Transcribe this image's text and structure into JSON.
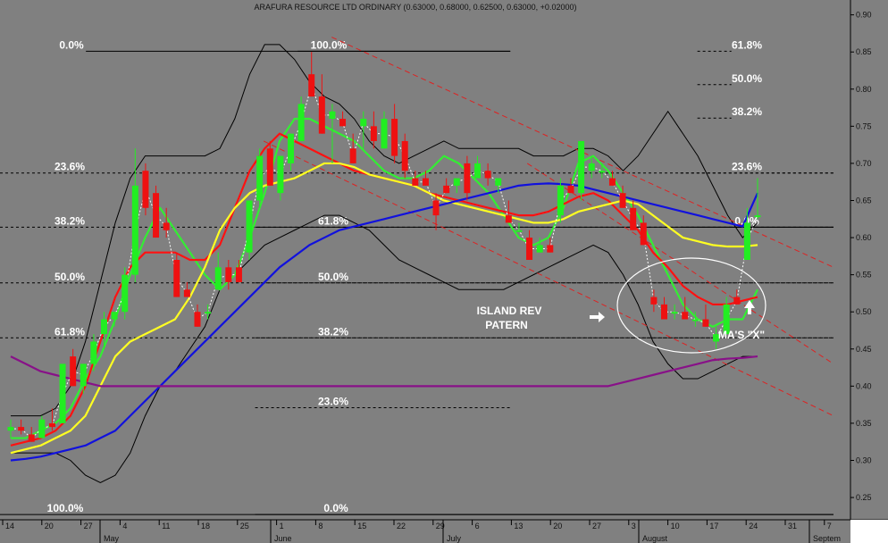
{
  "colors": {
    "background": "#808080",
    "candle_up": "#22ee22",
    "candle_down": "#ee1111",
    "ma_fast": "#33ee33",
    "ma_mid": "#ff1111",
    "ma_slow": "#ffff22",
    "ma_long": "#1111dd",
    "ma_very_long": "#881188",
    "bollinger": "#000000",
    "channel": "#dd2222",
    "annotation": "#ffffff"
  },
  "chart_data": {
    "type": "candlestick",
    "title": "ARAFURA RESOURCE LTD ORDINARY (0.63000, 0.68000, 0.62500, 0.63000, +0.02000)",
    "yaxis": {
      "ticks": [
        "0.90",
        "0.85",
        "0.80",
        "0.75",
        "0.70",
        "0.65",
        "0.60",
        "0.55",
        "0.50",
        "0.45",
        "0.40",
        "0.35",
        "0.30",
        "0.25"
      ],
      "range": [
        0.22,
        0.92
      ],
      "position": "right"
    },
    "xaxis": {
      "day_ticks": [
        "14",
        "20",
        "27",
        "4",
        "11",
        "18",
        "25",
        "1",
        "8",
        "15",
        "22",
        "29",
        "6",
        "13",
        "20",
        "27",
        "3",
        "10",
        "17",
        "24",
        "31",
        "7"
      ],
      "month_labels": [
        "May",
        "June",
        "July",
        "August",
        "Septem"
      ]
    },
    "fib_levels": [
      {
        "label": "0.0%",
        "price": 0.851
      },
      {
        "label": "100.0%",
        "price": 0.851
      },
      {
        "label": "61.8%",
        "price": 0.851
      },
      {
        "label": "50.0%",
        "price": 0.806
      },
      {
        "label": "38.2%",
        "price": 0.761
      },
      {
        "label": "23.6%",
        "price": 0.687
      },
      {
        "label": "23.6%",
        "price": 0.687
      },
      {
        "label": "38.2%",
        "price": 0.614
      },
      {
        "label": "61.8%",
        "price": 0.614
      },
      {
        "label": "0.0%",
        "price": 0.614
      },
      {
        "label": "50.0%",
        "price": 0.539
      },
      {
        "label": "50.0%",
        "price": 0.539
      },
      {
        "label": "61.8%",
        "price": 0.465
      },
      {
        "label": "38.2%",
        "price": 0.465
      },
      {
        "label": "23.6%",
        "price": 0.371
      },
      {
        "label": "100.0%",
        "price": 0.227
      },
      {
        "label": "0.0%",
        "price": 0.227
      }
    ],
    "candles": [
      {
        "o": 0.34,
        "h": 0.355,
        "l": 0.33,
        "c": 0.345
      },
      {
        "o": 0.345,
        "h": 0.355,
        "l": 0.335,
        "c": 0.34
      },
      {
        "o": 0.335,
        "h": 0.345,
        "l": 0.325,
        "c": 0.325
      },
      {
        "o": 0.33,
        "h": 0.36,
        "l": 0.33,
        "c": 0.355
      },
      {
        "o": 0.35,
        "h": 0.37,
        "l": 0.34,
        "c": 0.345
      },
      {
        "o": 0.35,
        "h": 0.43,
        "l": 0.35,
        "c": 0.43
      },
      {
        "o": 0.44,
        "h": 0.45,
        "l": 0.4,
        "c": 0.4
      },
      {
        "o": 0.4,
        "h": 0.43,
        "l": 0.39,
        "c": 0.43
      },
      {
        "o": 0.43,
        "h": 0.47,
        "l": 0.42,
        "c": 0.46
      },
      {
        "o": 0.47,
        "h": 0.5,
        "l": 0.45,
        "c": 0.49
      },
      {
        "o": 0.49,
        "h": 0.5,
        "l": 0.48,
        "c": 0.5
      },
      {
        "o": 0.5,
        "h": 0.56,
        "l": 0.49,
        "c": 0.55
      },
      {
        "o": 0.55,
        "h": 0.72,
        "l": 0.54,
        "c": 0.67
      },
      {
        "o": 0.69,
        "h": 0.7,
        "l": 0.63,
        "c": 0.64
      },
      {
        "o": 0.66,
        "h": 0.67,
        "l": 0.6,
        "c": 0.6
      },
      {
        "o": 0.62,
        "h": 0.64,
        "l": 0.6,
        "c": 0.61
      },
      {
        "o": 0.57,
        "h": 0.58,
        "l": 0.52,
        "c": 0.52
      },
      {
        "o": 0.53,
        "h": 0.54,
        "l": 0.52,
        "c": 0.52
      },
      {
        "o": 0.5,
        "h": 0.51,
        "l": 0.48,
        "c": 0.48
      },
      {
        "o": 0.5,
        "h": 0.51,
        "l": 0.49,
        "c": 0.5
      },
      {
        "o": 0.53,
        "h": 0.58,
        "l": 0.53,
        "c": 0.56
      },
      {
        "o": 0.56,
        "h": 0.57,
        "l": 0.53,
        "c": 0.54
      },
      {
        "o": 0.56,
        "h": 0.57,
        "l": 0.54,
        "c": 0.54
      },
      {
        "o": 0.58,
        "h": 0.65,
        "l": 0.57,
        "c": 0.65
      },
      {
        "o": 0.65,
        "h": 0.72,
        "l": 0.64,
        "c": 0.71
      },
      {
        "o": 0.72,
        "h": 0.73,
        "l": 0.67,
        "c": 0.67
      },
      {
        "o": 0.66,
        "h": 0.71,
        "l": 0.65,
        "c": 0.71
      },
      {
        "o": 0.7,
        "h": 0.74,
        "l": 0.69,
        "c": 0.74
      },
      {
        "o": 0.73,
        "h": 0.79,
        "l": 0.73,
        "c": 0.78
      },
      {
        "o": 0.82,
        "h": 0.85,
        "l": 0.79,
        "c": 0.79
      },
      {
        "o": 0.79,
        "h": 0.82,
        "l": 0.74,
        "c": 0.74
      },
      {
        "o": 0.76,
        "h": 0.78,
        "l": 0.7,
        "c": 0.77
      },
      {
        "o": 0.76,
        "h": 0.77,
        "l": 0.75,
        "c": 0.75
      },
      {
        "o": 0.72,
        "h": 0.74,
        "l": 0.7,
        "c": 0.7
      },
      {
        "o": 0.75,
        "h": 0.77,
        "l": 0.72,
        "c": 0.76
      },
      {
        "o": 0.75,
        "h": 0.77,
        "l": 0.72,
        "c": 0.73
      },
      {
        "o": 0.72,
        "h": 0.77,
        "l": 0.72,
        "c": 0.76
      },
      {
        "o": 0.76,
        "h": 0.78,
        "l": 0.7,
        "c": 0.71
      },
      {
        "o": 0.73,
        "h": 0.74,
        "l": 0.68,
        "c": 0.69
      },
      {
        "o": 0.68,
        "h": 0.69,
        "l": 0.67,
        "c": 0.67
      },
      {
        "o": 0.68,
        "h": 0.69,
        "l": 0.67,
        "c": 0.67
      },
      {
        "o": 0.65,
        "h": 0.66,
        "l": 0.61,
        "c": 0.63
      },
      {
        "o": 0.67,
        "h": 0.68,
        "l": 0.66,
        "c": 0.66
      },
      {
        "o": 0.67,
        "h": 0.68,
        "l": 0.66,
        "c": 0.68
      },
      {
        "o": 0.7,
        "h": 0.71,
        "l": 0.65,
        "c": 0.66
      },
      {
        "o": 0.68,
        "h": 0.71,
        "l": 0.68,
        "c": 0.7
      },
      {
        "o": 0.69,
        "h": 0.7,
        "l": 0.67,
        "c": 0.68
      },
      {
        "o": 0.67,
        "h": 0.68,
        "l": 0.66,
        "c": 0.68
      },
      {
        "o": 0.63,
        "h": 0.65,
        "l": 0.62,
        "c": 0.62
      },
      {
        "o": 0.61,
        "h": 0.62,
        "l": 0.61,
        "c": 0.61
      },
      {
        "o": 0.6,
        "h": 0.61,
        "l": 0.57,
        "c": 0.57
      },
      {
        "o": 0.58,
        "h": 0.6,
        "l": 0.58,
        "c": 0.59
      },
      {
        "o": 0.59,
        "h": 0.6,
        "l": 0.58,
        "c": 0.58
      },
      {
        "o": 0.63,
        "h": 0.68,
        "l": 0.62,
        "c": 0.67
      },
      {
        "o": 0.67,
        "h": 0.68,
        "l": 0.66,
        "c": 0.66
      },
      {
        "o": 0.66,
        "h": 0.73,
        "l": 0.65,
        "c": 0.73
      },
      {
        "o": 0.69,
        "h": 0.71,
        "l": 0.68,
        "c": 0.7
      },
      {
        "o": 0.69,
        "h": 0.7,
        "l": 0.68,
        "c": 0.69
      },
      {
        "o": 0.68,
        "h": 0.69,
        "l": 0.67,
        "c": 0.67
      },
      {
        "o": 0.66,
        "h": 0.67,
        "l": 0.64,
        "c": 0.64
      },
      {
        "o": 0.64,
        "h": 0.65,
        "l": 0.61,
        "c": 0.61
      },
      {
        "o": 0.62,
        "h": 0.63,
        "l": 0.59,
        "c": 0.59
      },
      {
        "o": 0.52,
        "h": 0.53,
        "l": 0.5,
        "c": 0.51
      },
      {
        "o": 0.51,
        "h": 0.52,
        "l": 0.49,
        "c": 0.49
      },
      {
        "o": 0.5,
        "h": 0.51,
        "l": 0.49,
        "c": 0.5
      },
      {
        "o": 0.5,
        "h": 0.52,
        "l": 0.49,
        "c": 0.49
      },
      {
        "o": 0.49,
        "h": 0.5,
        "l": 0.48,
        "c": 0.49
      },
      {
        "o": 0.49,
        "h": 0.51,
        "l": 0.48,
        "c": 0.48
      },
      {
        "o": 0.46,
        "h": 0.48,
        "l": 0.45,
        "c": 0.47
      },
      {
        "o": 0.47,
        "h": 0.52,
        "l": 0.47,
        "c": 0.51
      },
      {
        "o": 0.52,
        "h": 0.53,
        "l": 0.51,
        "c": 0.51
      },
      {
        "o": 0.57,
        "h": 0.64,
        "l": 0.57,
        "c": 0.62
      },
      {
        "o": 0.63,
        "h": 0.68,
        "l": 0.625,
        "c": 0.63
      }
    ],
    "series": [
      {
        "key": "ma_fast",
        "values": [
          0.33,
          0.33,
          0.34,
          0.35,
          0.37,
          0.41,
          0.44,
          0.49,
          0.55,
          0.6,
          0.64,
          0.61,
          0.58,
          0.55,
          0.53,
          0.55,
          0.6,
          0.66,
          0.73,
          0.76,
          0.76,
          0.75,
          0.74,
          0.73,
          0.71,
          0.69,
          0.68,
          0.68,
          0.69,
          0.71,
          0.7,
          0.68,
          0.66,
          0.63,
          0.6,
          0.59,
          0.6,
          0.64,
          0.7,
          0.71,
          0.69,
          0.66,
          0.63,
          0.59,
          0.55,
          0.51,
          0.49,
          0.48,
          0.49,
          0.49,
          0.53
        ]
      },
      {
        "key": "ma_mid",
        "values": [
          0.32,
          0.325,
          0.33,
          0.34,
          0.36,
          0.4,
          0.46,
          0.52,
          0.56,
          0.58,
          0.58,
          0.58,
          0.57,
          0.57,
          0.59,
          0.64,
          0.69,
          0.72,
          0.74,
          0.73,
          0.72,
          0.71,
          0.7,
          0.69,
          0.685,
          0.68,
          0.675,
          0.67,
          0.66,
          0.655,
          0.65,
          0.645,
          0.64,
          0.635,
          0.63,
          0.63,
          0.635,
          0.645,
          0.655,
          0.66,
          0.65,
          0.63,
          0.61,
          0.58,
          0.56,
          0.535,
          0.52,
          0.51,
          0.51,
          0.515,
          0.52
        ]
      },
      {
        "key": "ma_slow",
        "values": [
          0.31,
          0.315,
          0.32,
          0.33,
          0.34,
          0.36,
          0.4,
          0.44,
          0.46,
          0.47,
          0.48,
          0.49,
          0.52,
          0.56,
          0.61,
          0.64,
          0.66,
          0.67,
          0.675,
          0.68,
          0.69,
          0.7,
          0.7,
          0.695,
          0.685,
          0.68,
          0.675,
          0.67,
          0.66,
          0.65,
          0.645,
          0.64,
          0.635,
          0.63,
          0.625,
          0.62,
          0.62,
          0.625,
          0.635,
          0.64,
          0.645,
          0.65,
          0.645,
          0.63,
          0.615,
          0.6,
          0.595,
          0.59,
          0.588,
          0.588,
          0.59
        ]
      },
      {
        "key": "ma_long",
        "values": [
          0.3,
          0.302,
          0.305,
          0.31,
          0.315,
          0.32,
          0.33,
          0.34,
          0.36,
          0.38,
          0.4,
          0.42,
          0.44,
          0.46,
          0.48,
          0.5,
          0.52,
          0.54,
          0.56,
          0.575,
          0.59,
          0.6,
          0.61,
          0.615,
          0.62,
          0.625,
          0.63,
          0.635,
          0.64,
          0.645,
          0.65,
          0.655,
          0.66,
          0.665,
          0.67,
          0.672,
          0.673,
          0.672,
          0.67,
          0.665,
          0.66,
          0.655,
          0.65,
          0.645,
          0.64,
          0.635,
          0.63,
          0.625,
          0.62,
          0.615,
          0.66
        ]
      },
      {
        "key": "ma_very_long",
        "values": [
          0.44,
          0.43,
          0.42,
          0.415,
          0.41,
          0.405,
          0.4,
          0.4,
          0.4,
          0.4,
          0.4,
          0.4,
          0.4,
          0.4,
          0.4,
          0.4,
          0.4,
          0.4,
          0.4,
          0.4,
          0.4,
          0.4,
          0.4,
          0.4,
          0.4,
          0.4,
          0.4,
          0.4,
          0.4,
          0.4,
          0.4,
          0.4,
          0.4,
          0.4,
          0.4,
          0.4,
          0.4,
          0.4,
          0.4,
          0.4,
          0.4,
          0.405,
          0.41,
          0.415,
          0.42,
          0.425,
          0.43,
          0.435,
          0.437,
          0.438,
          0.44
        ]
      }
    ],
    "bollinger": {
      "upper": [
        0.36,
        0.36,
        0.36,
        0.37,
        0.4,
        0.46,
        0.54,
        0.62,
        0.68,
        0.71,
        0.71,
        0.71,
        0.71,
        0.71,
        0.72,
        0.76,
        0.82,
        0.86,
        0.86,
        0.84,
        0.81,
        0.79,
        0.78,
        0.76,
        0.73,
        0.71,
        0.7,
        0.71,
        0.72,
        0.73,
        0.72,
        0.72,
        0.72,
        0.72,
        0.72,
        0.71,
        0.71,
        0.71,
        0.72,
        0.72,
        0.71,
        0.69,
        0.71,
        0.74,
        0.77,
        0.74,
        0.71,
        0.67,
        0.63,
        0.6,
        0.62
      ],
      "lower": [
        0.31,
        0.31,
        0.31,
        0.31,
        0.3,
        0.28,
        0.27,
        0.28,
        0.31,
        0.36,
        0.4,
        0.42,
        0.45,
        0.48,
        0.53,
        0.55,
        0.57,
        0.59,
        0.6,
        0.61,
        0.62,
        0.63,
        0.63,
        0.62,
        0.61,
        0.59,
        0.57,
        0.56,
        0.55,
        0.54,
        0.53,
        0.53,
        0.53,
        0.53,
        0.54,
        0.55,
        0.56,
        0.57,
        0.58,
        0.59,
        0.58,
        0.55,
        0.51,
        0.46,
        0.43,
        0.41,
        0.41,
        0.42,
        0.43,
        0.44,
        0.44
      ]
    },
    "channel_lines": [
      {
        "from": [
          0.39,
          0.87
        ],
        "to": [
          0.98,
          0.56
        ]
      },
      {
        "from": [
          0.31,
          0.73
        ],
        "to": [
          0.98,
          0.36
        ]
      },
      {
        "from": [
          0.62,
          0.7
        ],
        "to": [
          0.98,
          0.43
        ]
      }
    ],
    "annotations": [
      {
        "text": "ISLAND REV",
        "target": "island"
      },
      {
        "text": "PATERN",
        "target": "island"
      },
      {
        "text": "MA'S \"X\"",
        "target": "cross"
      }
    ]
  }
}
